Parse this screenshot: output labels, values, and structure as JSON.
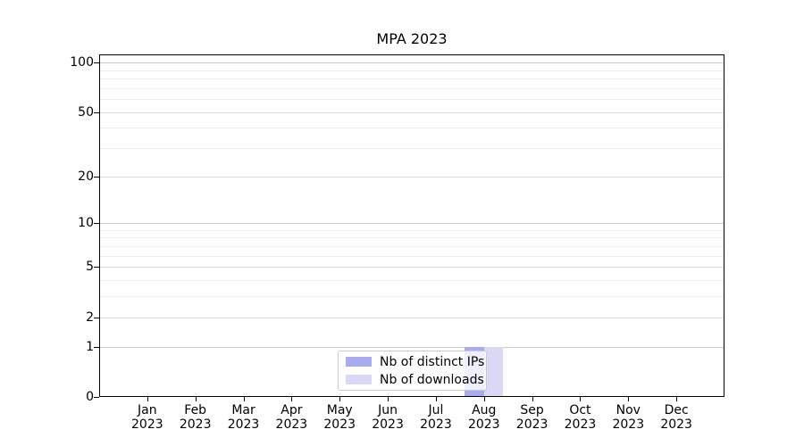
{
  "chart_data": {
    "type": "bar",
    "title": "MPA 2023",
    "categories": [
      "Jan",
      "Feb",
      "Mar",
      "Apr",
      "May",
      "Jun",
      "Jul",
      "Aug",
      "Sep",
      "Oct",
      "Nov",
      "Dec"
    ],
    "category_year": "2023",
    "series": [
      {
        "name": "Nb of distinct IPs",
        "color": "#aaaaee",
        "values": [
          0,
          0,
          0,
          0,
          0,
          0,
          0,
          1,
          0,
          0,
          0,
          0
        ]
      },
      {
        "name": "Nb of downloads",
        "color": "#d9d9f6",
        "values": [
          0,
          0,
          0,
          0,
          0,
          0,
          0,
          1,
          0,
          0,
          0,
          0
        ]
      }
    ],
    "yscale": "log1p",
    "ylim": [
      0,
      112
    ],
    "yticks_major": [
      0,
      1,
      2,
      5,
      10,
      20,
      50,
      100
    ],
    "yticks_minor": [
      3,
      4,
      6,
      7,
      8,
      9,
      30,
      40,
      60,
      70,
      80,
      90
    ],
    "grid": true,
    "legend_position": "lower center"
  },
  "colors": {
    "axis": "#000000",
    "grid_decade": "#c8c8c8",
    "grid_major": "#dcdcdc",
    "grid_minor": "#ededed",
    "legend_border": "#cccccc",
    "background": "#ffffff",
    "text": "#000000"
  }
}
